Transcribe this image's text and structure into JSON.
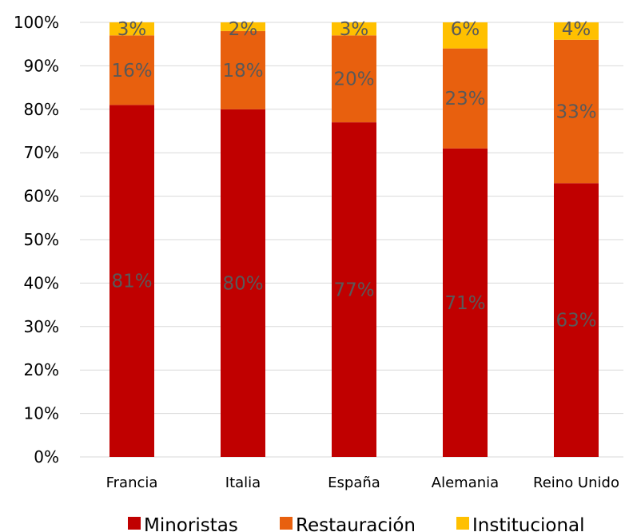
{
  "chart_data": {
    "type": "bar",
    "stacked": true,
    "orientation": "vertical",
    "categories": [
      "Francia",
      "Italia",
      "España",
      "Alemania",
      "Reino Unido"
    ],
    "series": [
      {
        "name": "Minoristas",
        "values": [
          81,
          80,
          77,
          71,
          63
        ],
        "labels": [
          "81%",
          "80%",
          "77%",
          "71%",
          "63%"
        ],
        "color": "#c00000"
      },
      {
        "name": "Restauración",
        "values": [
          16,
          18,
          20,
          23,
          33
        ],
        "labels": [
          "16%",
          "18%",
          "20%",
          "23%",
          "33%"
        ],
        "color": "#e8600e"
      },
      {
        "name": "Institucional",
        "values": [
          3,
          2,
          3,
          6,
          4
        ],
        "labels": [
          "3%",
          "2%",
          "3%",
          "6%",
          "4%"
        ],
        "color": "#ffc000"
      }
    ],
    "ylim": [
      0,
      100
    ],
    "yticks": [
      "0%",
      "10%",
      "20%",
      "30%",
      "40%",
      "50%",
      "60%",
      "70%",
      "80%",
      "90%",
      "100%"
    ],
    "grid": true,
    "legend_position": "bottom",
    "title": "",
    "xlabel": "",
    "ylabel": ""
  }
}
